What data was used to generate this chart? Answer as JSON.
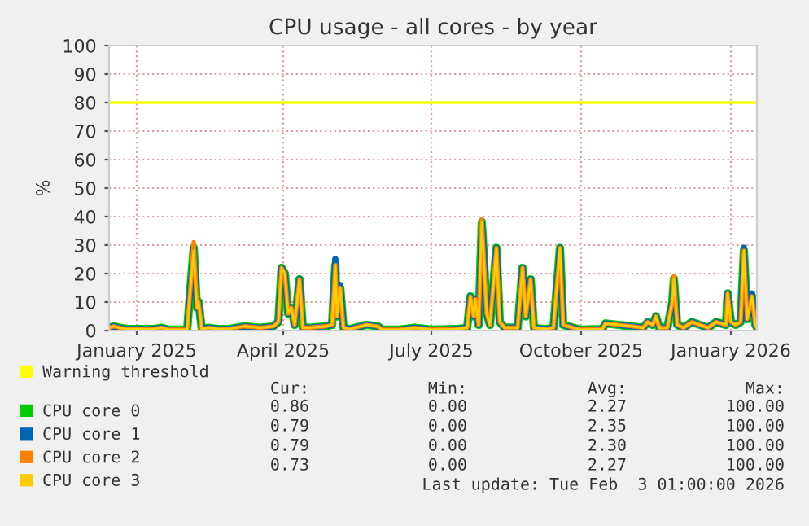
{
  "chart_data": {
    "type": "line",
    "title": "CPU usage - all cores - by year",
    "ylabel": "%",
    "x": [
      "2024-12-15",
      "2024-12-18",
      "2024-12-23",
      "2024-12-28",
      "2025-01-11",
      "2025-01-16",
      "2025-01-21",
      "2025-02-01",
      "2025-02-03",
      "2025-02-05",
      "2025-02-07",
      "2025-02-08",
      "2025-02-10",
      "2025-02-14",
      "2025-02-21",
      "2025-02-26",
      "2025-03-08",
      "2025-03-18",
      "2025-03-26",
      "2025-03-29",
      "2025-03-31",
      "2025-04-02",
      "2025-04-04",
      "2025-04-06",
      "2025-04-08",
      "2025-04-11",
      "2025-04-13",
      "2025-04-17",
      "2025-04-27",
      "2025-05-01",
      "2025-05-03",
      "2025-05-04",
      "2025-05-06",
      "2025-05-08",
      "2025-05-12",
      "2025-05-22",
      "2025-05-29",
      "2025-06-01",
      "2025-06-11",
      "2025-06-21",
      "2025-07-01",
      "2025-07-16",
      "2025-07-23",
      "2025-07-25",
      "2025-07-27",
      "2025-07-28",
      "2025-07-30",
      "2025-08-01",
      "2025-08-02",
      "2025-08-04",
      "2025-08-06",
      "2025-08-10",
      "2025-08-12",
      "2025-08-15",
      "2025-08-23",
      "2025-08-25",
      "2025-08-26",
      "2025-08-28",
      "2025-08-31",
      "2025-09-02",
      "2025-09-09",
      "2025-09-14",
      "2025-09-18",
      "2025-09-20",
      "2025-09-26",
      "2025-10-01",
      "2025-10-14",
      "2025-10-16",
      "2025-10-24",
      "2025-11-01",
      "2025-11-08",
      "2025-11-11",
      "2025-11-14",
      "2025-11-16",
      "2025-11-18",
      "2025-11-23",
      "2025-11-26",
      "2025-11-27",
      "2025-11-29",
      "2025-12-03",
      "2025-12-08",
      "2025-12-13",
      "2025-12-18",
      "2025-12-23",
      "2025-12-29",
      "2025-12-30",
      "2026-01-01",
      "2026-01-04",
      "2026-01-07",
      "2026-01-09",
      "2026-01-11",
      "2026-01-14",
      "2026-01-16",
      "2026-01-17"
    ],
    "series": [
      {
        "name": "CPU core 0",
        "color": "#00cc00",
        "values": [
          1,
          1.5,
          0.8,
          0.5,
          0.5,
          1,
          0.3,
          0.3,
          15,
          29,
          8,
          10,
          0.5,
          1,
          0.5,
          0.5,
          1.5,
          1,
          1.5,
          3,
          22,
          20,
          6,
          8,
          2,
          18,
          1,
          1,
          1.5,
          2,
          23,
          5,
          15,
          1,
          0.5,
          2,
          1.5,
          0.3,
          0.3,
          1,
          0.3,
          0.5,
          1,
          12,
          5,
          11,
          2,
          38,
          28,
          6,
          2,
          29,
          3,
          1,
          1,
          15,
          22,
          5,
          18,
          1,
          0.5,
          1,
          29,
          2,
          1,
          0.3,
          0.5,
          2.5,
          2,
          1.5,
          1,
          3,
          2,
          5,
          1,
          1,
          10,
          18,
          2,
          1,
          3,
          2,
          1,
          3,
          2,
          13,
          3,
          2,
          3,
          28,
          4,
          12,
          2,
          1
        ]
      },
      {
        "name": "CPU core 1",
        "color": "#0066b3",
        "values": [
          1,
          1.5,
          0.8,
          0.5,
          0.5,
          1,
          0.3,
          0.3,
          15,
          29,
          8,
          10,
          0.5,
          1,
          0.5,
          0.5,
          1.5,
          1,
          1.5,
          3,
          22,
          20,
          6,
          8,
          2,
          18,
          1,
          1,
          1.5,
          2,
          25,
          5,
          16,
          1,
          0.5,
          2,
          1.5,
          0.3,
          0.3,
          1,
          0.3,
          0.5,
          1,
          12,
          5,
          11,
          2,
          38,
          30,
          6,
          2,
          29,
          3,
          1,
          1,
          15,
          22,
          5,
          18,
          1,
          0.5,
          1,
          29,
          2,
          1,
          0.3,
          0.5,
          2.5,
          2,
          1.5,
          1,
          3,
          2,
          5,
          1,
          1,
          10,
          18,
          2,
          1,
          3,
          2,
          1,
          3,
          2,
          13,
          3,
          2,
          3,
          29,
          4,
          13,
          2,
          1
        ]
      },
      {
        "name": "CPU core 2",
        "color": "#ff8000",
        "values": [
          1,
          1.5,
          0.8,
          0.5,
          0.5,
          1,
          0.3,
          0.3,
          15,
          31,
          8,
          10,
          0.5,
          1,
          0.5,
          0.5,
          1.5,
          1,
          1.5,
          3,
          22,
          20,
          6,
          8,
          2,
          18,
          1,
          1,
          1.5,
          2,
          23,
          5,
          15,
          1,
          0.5,
          2,
          1.5,
          0.3,
          0.3,
          1,
          0.3,
          0.5,
          1,
          12,
          5,
          11,
          2,
          39,
          28,
          6,
          2,
          29,
          3,
          1,
          1,
          15,
          22,
          5,
          18,
          1,
          0.5,
          1,
          29,
          2,
          1,
          0.3,
          0.5,
          2.5,
          2,
          1.5,
          1,
          3,
          2,
          5,
          1,
          1,
          10,
          19,
          2,
          1,
          3,
          2,
          1,
          3,
          2,
          13,
          3,
          2,
          3,
          28,
          4,
          12,
          2,
          1
        ]
      },
      {
        "name": "CPU core 3",
        "color": "#ffcc00",
        "values": [
          1,
          1.5,
          0.8,
          0.5,
          0.5,
          1,
          0.3,
          0.3,
          15,
          28,
          8,
          10,
          0.5,
          1,
          0.5,
          0.5,
          1.5,
          1,
          1.5,
          3,
          22,
          20,
          6,
          8,
          2,
          18,
          1,
          1,
          1.5,
          2,
          23,
          5,
          15,
          1,
          0.5,
          2,
          1.5,
          0.3,
          0.3,
          1,
          0.3,
          0.5,
          1,
          12,
          5,
          11,
          2,
          38,
          28,
          6,
          2,
          29,
          3,
          1,
          1,
          15,
          22,
          5,
          18,
          1,
          0.5,
          1,
          29,
          2,
          1,
          0.3,
          0.5,
          2.5,
          2,
          1.5,
          1,
          3,
          2,
          5,
          1,
          1,
          10,
          18,
          2,
          1,
          3,
          2,
          1,
          3,
          2,
          13,
          3,
          2,
          3,
          28,
          4,
          12,
          2,
          1
        ]
      }
    ],
    "ref_lines": [
      {
        "axis": "y",
        "value": 80,
        "label": "Warning threshold",
        "color": "#ffff00"
      }
    ],
    "xlim": [
      "2024-12-15",
      "2026-01-17"
    ],
    "xticks": [
      {
        "value": "2025-01-01",
        "label": "January 2025"
      },
      {
        "value": "2025-04-01",
        "label": "April 2025"
      },
      {
        "value": "2025-07-01",
        "label": "July 2025"
      },
      {
        "value": "2025-10-01",
        "label": "October 2025"
      },
      {
        "value": "2026-01-01",
        "label": "January 2026"
      }
    ],
    "ylim": [
      0,
      100
    ],
    "yticks": [
      0,
      10,
      20,
      30,
      40,
      50,
      60,
      70,
      80,
      90,
      100
    ],
    "grid": true,
    "legend": "bottom",
    "marker": "none",
    "line_style": "solid",
    "annotations": [
      "Cur:",
      "Min:",
      "Avg:",
      "Max:",
      "0.86",
      "0.00",
      "2.27",
      "100.00",
      "0.79",
      "0.00",
      "2.35",
      "100.00",
      "0.79",
      "0.00",
      "2.30",
      "100.00",
      "0.73",
      "0.00",
      "2.27",
      "100.00",
      "Last update: Tue Feb  3 01:00:00 2026"
    ]
  }
}
